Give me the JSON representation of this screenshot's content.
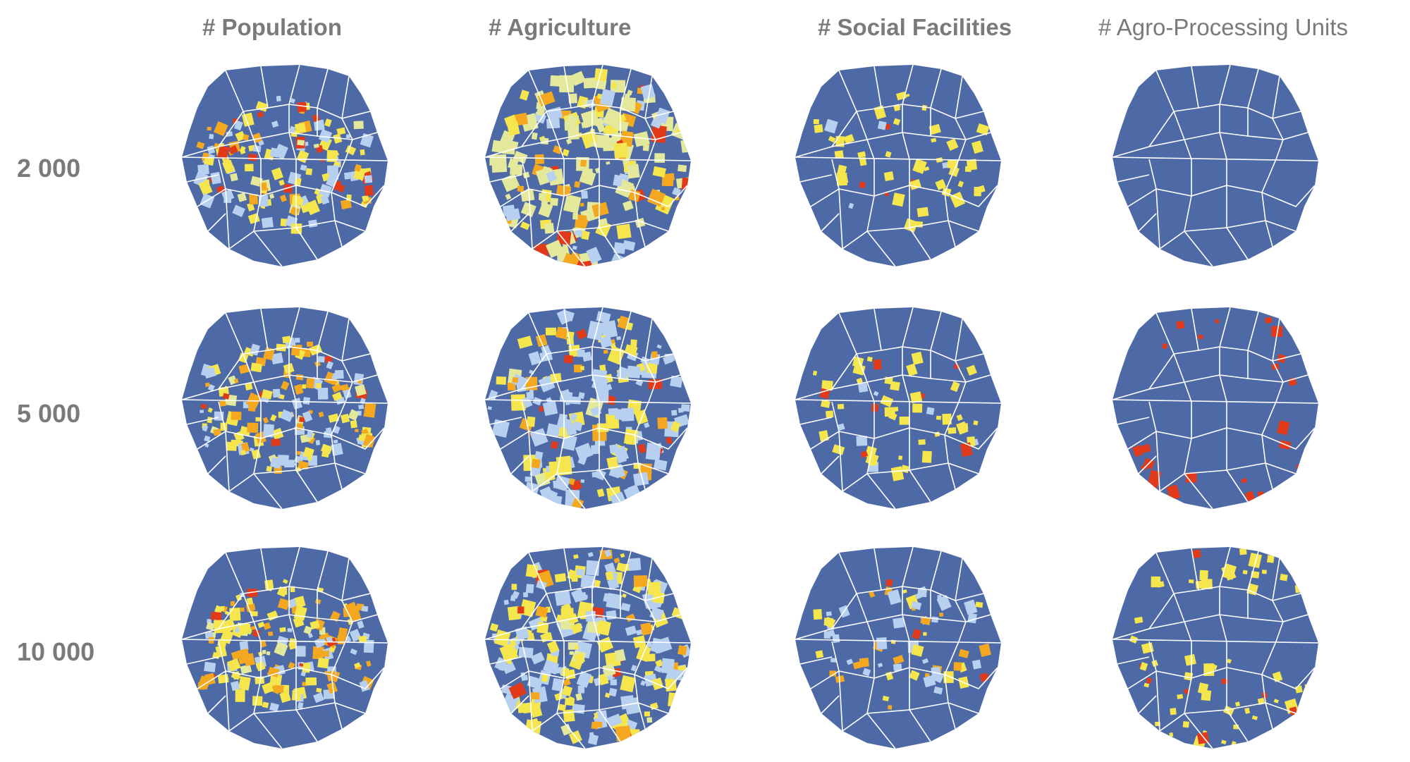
{
  "columns": [
    {
      "label": "# Population"
    },
    {
      "label": "# Agriculture"
    },
    {
      "label": "# Social Facilities"
    },
    {
      "label": "# Agro-Processing Units"
    }
  ],
  "rows": [
    {
      "label": "2 000"
    },
    {
      "label": "5 000"
    },
    {
      "label": "10 000"
    }
  ],
  "colors": {
    "background_cell": "#4d6aa6",
    "cell_border": "#ffffff",
    "low": "#b8d0ef",
    "mid_low": "#e4e89a",
    "mid": "#f5e64e",
    "mid_high": "#f4a820",
    "high": "#e03a1a"
  },
  "maps": [
    [
      {
        "density": 0.55,
        "level_mix": [
          0.3,
          0.05,
          0.35,
          0.2,
          0.1
        ],
        "spread": "center"
      },
      {
        "density": 0.75,
        "level_mix": [
          0.1,
          0.55,
          0.15,
          0.15,
          0.05
        ],
        "spread": "wide"
      },
      {
        "density": 0.18,
        "level_mix": [
          0.1,
          0.0,
          0.8,
          0.0,
          0.1
        ],
        "spread": "center"
      },
      {
        "density": 0.01,
        "level_mix": [
          0.0,
          0.0,
          0.0,
          0.0,
          1.0
        ],
        "spread": "east"
      }
    ],
    [
      {
        "density": 0.6,
        "level_mix": [
          0.3,
          0.05,
          0.3,
          0.3,
          0.05
        ],
        "spread": "center"
      },
      {
        "density": 0.7,
        "level_mix": [
          0.55,
          0.05,
          0.25,
          0.1,
          0.05
        ],
        "spread": "wide"
      },
      {
        "density": 0.2,
        "level_mix": [
          0.05,
          0.0,
          0.75,
          0.0,
          0.2
        ],
        "spread": "center"
      },
      {
        "density": 0.08,
        "level_mix": [
          0.0,
          0.0,
          0.0,
          0.0,
          1.0
        ],
        "spread": "ring"
      }
    ],
    [
      {
        "density": 0.62,
        "level_mix": [
          0.25,
          0.05,
          0.4,
          0.25,
          0.05
        ],
        "spread": "center"
      },
      {
        "density": 0.85,
        "level_mix": [
          0.45,
          0.05,
          0.35,
          0.1,
          0.05
        ],
        "spread": "wide"
      },
      {
        "density": 0.25,
        "level_mix": [
          0.4,
          0.0,
          0.3,
          0.25,
          0.05
        ],
        "spread": "center"
      },
      {
        "density": 0.22,
        "level_mix": [
          0.0,
          0.0,
          0.85,
          0.0,
          0.15
        ],
        "spread": "south"
      }
    ]
  ]
}
